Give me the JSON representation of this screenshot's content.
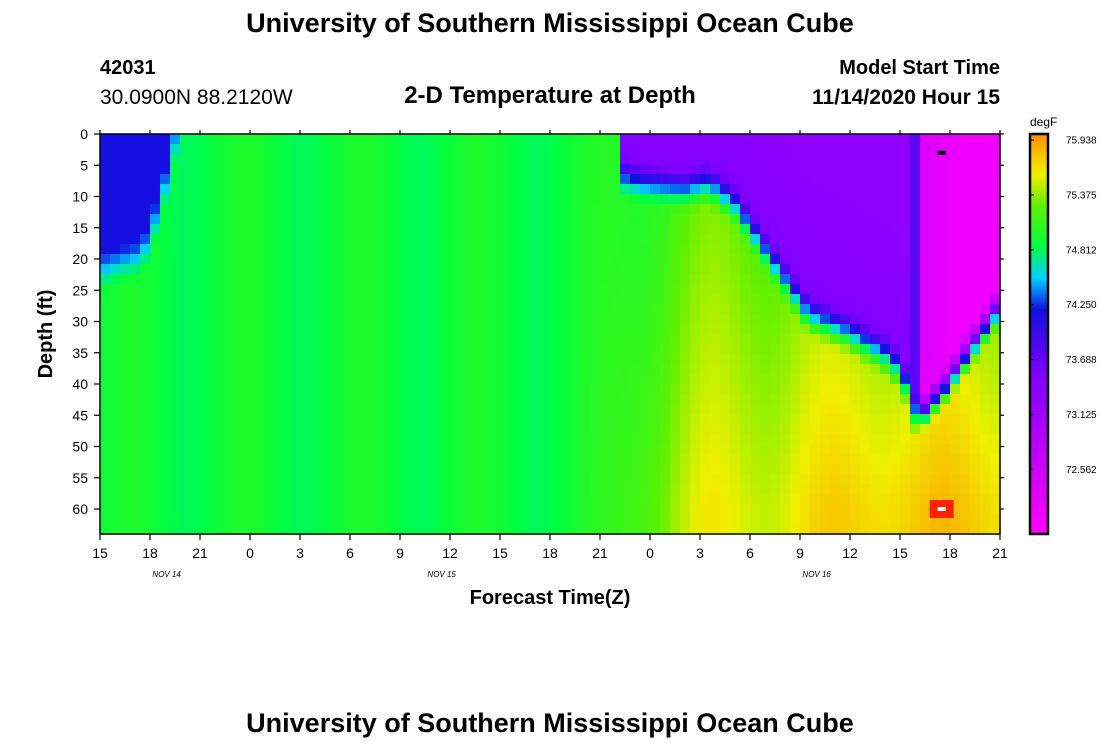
{
  "header": {
    "title": "University of Southern Mississippi Ocean Cube",
    "station_id": "42031",
    "station_coords": "30.0900N 88.2120W",
    "plot_title": "2-D Temperature at Depth",
    "model_label": "Model Start Time",
    "model_time": "11/14/2020 Hour 15"
  },
  "footer": {
    "title": "University of Southern Mississippi Ocean Cube"
  },
  "chart_data": {
    "type": "heatmap",
    "title": "2-D Temperature at Depth",
    "xlabel": "Forecast Time(Z)",
    "ylabel": "Depth (ft)",
    "colorbar_unit": "degF",
    "x_tick_labels": [
      "15",
      "18",
      "21",
      "0",
      "3",
      "6",
      "9",
      "12",
      "15",
      "18",
      "21",
      "0",
      "3",
      "6",
      "9",
      "12",
      "15",
      "18",
      "21"
    ],
    "x_hours_since_start": [
      0,
      3,
      6,
      9,
      12,
      15,
      18,
      21,
      24,
      27,
      30,
      33,
      36,
      39,
      42,
      45,
      48,
      51,
      54
    ],
    "day_labels": [
      {
        "label": "NOV 14",
        "hour": 4
      },
      {
        "label": "NOV 15",
        "hour": 20.5
      },
      {
        "label": "NOV 16",
        "hour": 43
      }
    ],
    "y_ticks": [
      0,
      5,
      10,
      15,
      20,
      25,
      30,
      35,
      40,
      45,
      50,
      55,
      60
    ],
    "ylim": [
      0,
      64
    ],
    "xlim": [
      0,
      54
    ],
    "colorbar_ticks": [
      "75.938",
      "75.375",
      "74.812",
      "74.250",
      "73.688",
      "73.125",
      "72.562"
    ],
    "colorbar_range": [
      71.9,
      76.0
    ],
    "markers": [
      {
        "hour": 50.5,
        "depth": 3,
        "kind": "min"
      },
      {
        "hour": 50.5,
        "depth": 60,
        "kind": "max"
      }
    ]
  }
}
